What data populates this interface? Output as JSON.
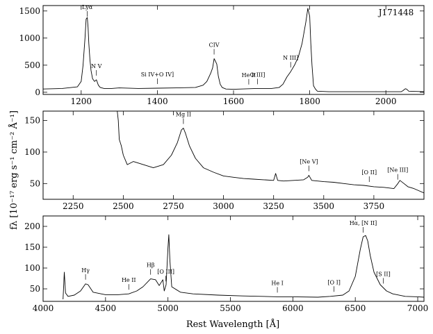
{
  "chart_data": [
    {
      "type": "line",
      "object": "J171448",
      "xlim": [
        1100,
        2100
      ],
      "ylim": [
        -40,
        1600
      ],
      "xticks": [
        1200,
        1400,
        1600,
        1800,
        2000
      ],
      "yticks": [
        0,
        500,
        1000,
        1500
      ],
      "series": [
        {
          "x": [
            1100,
            1150,
            1190,
            1200,
            1205,
            1210,
            1213,
            1216,
            1218,
            1220,
            1223,
            1226,
            1230,
            1235,
            1240,
            1245,
            1250,
            1260,
            1280,
            1300,
            1350,
            1400,
            1450,
            1500,
            1520,
            1530,
            1540,
            1545,
            1549,
            1552,
            1556,
            1560,
            1565,
            1570,
            1580,
            1600,
            1640,
            1660,
            1700,
            1720,
            1730,
            1740,
            1750,
            1760,
            1770,
            1780,
            1790,
            1795,
            1800,
            1803,
            1806,
            1810,
            1815,
            1820,
            1850,
            1900,
            1950,
            2000,
            2040,
            2045,
            2050,
            2052,
            2055,
            2060,
            2100
          ],
          "y": [
            60,
            70,
            100,
            200,
            500,
            1000,
            1350,
            1380,
            1200,
            900,
            600,
            400,
            250,
            200,
            230,
            130,
            90,
            70,
            70,
            80,
            70,
            75,
            80,
            90,
            130,
            200,
            350,
            450,
            620,
            580,
            520,
            300,
            150,
            90,
            60,
            55,
            65,
            70,
            70,
            90,
            150,
            280,
            380,
            500,
            650,
            900,
            1300,
            1550,
            1400,
            900,
            500,
            120,
            60,
            20,
            10,
            10,
            10,
            10,
            10,
            30,
            60,
            65,
            55,
            20,
            10
          ]
        }
      ],
      "annotations": [
        {
          "label": "Lyα",
          "x": 1216
        },
        {
          "label": "N V",
          "x": 1240
        },
        {
          "label": "Si IV+O IV]",
          "x": 1400
        },
        {
          "label": "CIV",
          "x": 1549
        },
        {
          "label": "He II",
          "x": 1640
        },
        {
          "label": "O III]",
          "x": 1663
        },
        {
          "label": "N III]",
          "x": 1750
        }
      ]
    },
    {
      "type": "line",
      "xlim": [
        2100,
        4000
      ],
      "ylim": [
        25,
        165
      ],
      "xticks": [
        2250,
        2500,
        2750,
        3000,
        3250,
        3500,
        3750
      ],
      "yticks": [
        50,
        100,
        150
      ],
      "series": [
        {
          "x": [
            2470,
            2475,
            2480,
            2490,
            2500,
            2520,
            2550,
            2600,
            2650,
            2700,
            2740,
            2770,
            2790,
            2800,
            2810,
            2830,
            2860,
            2900,
            2950,
            3000,
            3050,
            3100,
            3150,
            3200,
            3250,
            3260,
            3270,
            3300,
            3350,
            3400,
            3420,
            3426,
            3440,
            3500,
            3550,
            3600,
            3650,
            3700,
            3750,
            3800,
            3850,
            3870,
            3880,
            3900,
            3920,
            3950,
            4000
          ],
          "y": [
            165,
            150,
            120,
            110,
            95,
            80,
            85,
            80,
            75,
            80,
            95,
            115,
            135,
            138,
            130,
            110,
            90,
            75,
            68,
            62,
            60,
            58,
            57,
            56,
            55,
            66,
            55,
            54,
            55,
            56,
            60,
            63,
            55,
            53,
            52,
            50,
            48,
            47,
            45,
            44,
            42,
            50,
            55,
            50,
            45,
            42,
            35
          ]
        }
      ],
      "annotations": [
        {
          "label": "Mg II",
          "x": 2800
        },
        {
          "label": "[Ne V]",
          "x": 3426
        },
        {
          "label": "[O II]",
          "x": 3727
        },
        {
          "label": "[Ne III]",
          "x": 3869
        }
      ]
    },
    {
      "type": "line",
      "xlim": [
        4000,
        7050
      ],
      "ylim": [
        20,
        225
      ],
      "xticks": [
        4000,
        4500,
        5000,
        5500,
        6000,
        6500,
        7000
      ],
      "yticks": [
        50,
        100,
        150,
        200
      ],
      "xlabel": "Rest Wavelength [Å]",
      "ylabel": "fλ [10⁻¹⁷ erg s⁻¹ cm⁻² Å⁻¹]",
      "series": [
        {
          "x": [
            4160,
            4170,
            4180,
            4200,
            4250,
            4300,
            4340,
            4360,
            4400,
            4500,
            4600,
            4686,
            4750,
            4800,
            4861,
            4900,
            4930,
            4959,
            4970,
            4985,
            5000,
            5007,
            5015,
            5030,
            5100,
            5200,
            5400,
            5600,
            5876,
            6000,
            6200,
            6300,
            6400,
            6450,
            6500,
            6540,
            6563,
            6583,
            6600,
            6620,
            6650,
            6700,
            6750,
            6800,
            6900,
            7000,
            7050
          ],
          "y": [
            25,
            90,
            40,
            32,
            35,
            45,
            62,
            60,
            42,
            36,
            36,
            38,
            45,
            55,
            74,
            72,
            58,
            72,
            45,
            60,
            150,
            180,
            120,
            55,
            42,
            38,
            35,
            33,
            31,
            31,
            30,
            32,
            35,
            45,
            80,
            145,
            175,
            178,
            165,
            130,
            90,
            60,
            45,
            38,
            32,
            31,
            30
          ]
        }
      ],
      "annotations": [
        {
          "label": "Hγ",
          "x": 4340
        },
        {
          "label": "He II",
          "x": 4686
        },
        {
          "label": "Hβ",
          "x": 4861
        },
        {
          "label": "[O III]",
          "x": 4983
        },
        {
          "label": "He I",
          "x": 5876
        },
        {
          "label": "[O I]",
          "x": 6330
        },
        {
          "label": "Hα, [N II]",
          "x": 6563
        },
        {
          "label": "[S II]",
          "x": 6724
        }
      ]
    }
  ]
}
